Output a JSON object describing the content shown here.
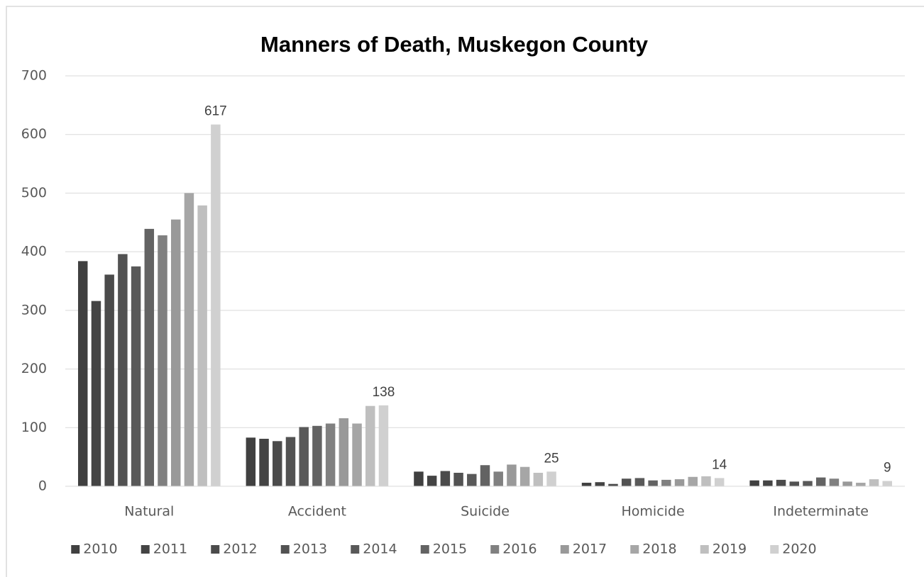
{
  "chart_data": {
    "type": "bar",
    "title": "Manners of Death, Muskegon County",
    "categories": [
      "Natural",
      "Accident",
      "Suicide",
      "Homicide",
      "Indeterminate"
    ],
    "series": [
      {
        "name": "2010",
        "color": "#404040",
        "values": [
          384,
          83,
          25,
          6,
          10
        ]
      },
      {
        "name": "2011",
        "color": "#444444",
        "values": [
          316,
          81,
          18,
          7,
          10
        ]
      },
      {
        "name": "2012",
        "color": "#4b4b4b",
        "values": [
          361,
          77,
          26,
          4,
          11
        ]
      },
      {
        "name": "2013",
        "color": "#525252",
        "values": [
          396,
          84,
          23,
          13,
          8
        ]
      },
      {
        "name": "2014",
        "color": "#595959",
        "values": [
          375,
          101,
          21,
          14,
          9
        ]
      },
      {
        "name": "2015",
        "color": "#636363",
        "values": [
          439,
          103,
          36,
          10,
          15
        ]
      },
      {
        "name": "2016",
        "color": "#808080",
        "values": [
          428,
          107,
          25,
          11,
          13
        ]
      },
      {
        "name": "2017",
        "color": "#999999",
        "values": [
          455,
          116,
          37,
          12,
          8
        ]
      },
      {
        "name": "2018",
        "color": "#a6a6a6",
        "values": [
          500,
          107,
          33,
          16,
          6
        ]
      },
      {
        "name": "2019",
        "color": "#bfbfbf",
        "values": [
          479,
          137,
          23,
          17,
          12
        ]
      },
      {
        "name": "2020",
        "color": "#d0d0d0",
        "values": [
          617,
          138,
          25,
          14,
          9
        ],
        "data_labels": true
      }
    ],
    "ylim": [
      0,
      700
    ],
    "yticks": [
      0,
      100,
      200,
      300,
      400,
      500,
      600,
      700
    ],
    "grid": true,
    "legend": "bottom"
  }
}
